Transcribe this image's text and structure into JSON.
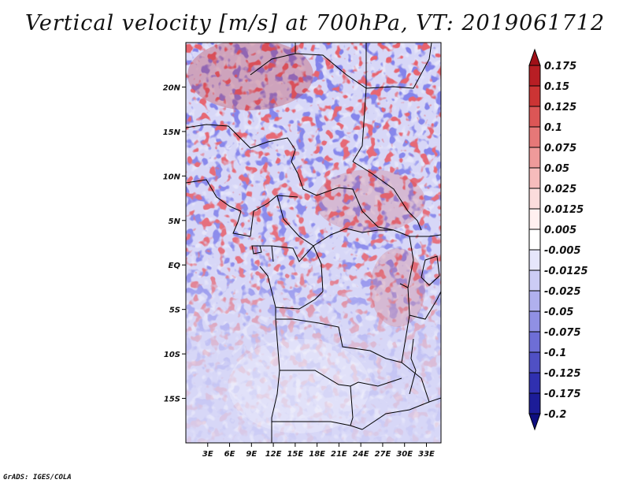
{
  "title": "Vertical velocity [m/s] at 700hPa, VT: 2019061712",
  "credit": "GrADS: IGES/COLA",
  "map": {
    "lon_range": [
      0,
      35
    ],
    "lat_range": [
      -20,
      25
    ],
    "lat_ticks": [
      {
        "lat": 20,
        "label": "20N"
      },
      {
        "lat": 15,
        "label": "15N"
      },
      {
        "lat": 10,
        "label": "10N"
      },
      {
        "lat": 5,
        "label": "5N"
      },
      {
        "lat": 0,
        "label": "EQ"
      },
      {
        "lat": -5,
        "label": "5S"
      },
      {
        "lat": -10,
        "label": "10S"
      },
      {
        "lat": -15,
        "label": "15S"
      }
    ],
    "lon_ticks": [
      {
        "lon": 3,
        "label": "3E"
      },
      {
        "lon": 6,
        "label": "6E"
      },
      {
        "lon": 9,
        "label": "9E"
      },
      {
        "lon": 12,
        "label": "12E"
      },
      {
        "lon": 15,
        "label": "15E"
      },
      {
        "lon": 18,
        "label": "18E"
      },
      {
        "lon": 21,
        "label": "21E"
      },
      {
        "lon": 24,
        "label": "24E"
      },
      {
        "lon": 27,
        "label": "27E"
      },
      {
        "lon": 30,
        "label": "30E"
      },
      {
        "lon": 33,
        "label": "33E"
      }
    ]
  },
  "colorbar": {
    "labels": [
      "0.175",
      "0.15",
      "0.125",
      "0.1",
      "0.075",
      "0.05",
      "0.025",
      "0.0125",
      "0.005",
      "-0.005",
      "-0.0125",
      "-0.025",
      "-0.05",
      "-0.075",
      "-0.1",
      "-0.125",
      "-0.175",
      "-0.2"
    ],
    "colors": [
      "#a01018",
      "#b81e24",
      "#cc3434",
      "#dc5656",
      "#e67878",
      "#ef9a9a",
      "#f6bcbc",
      "#fbdcdc",
      "#fff0f0",
      "#ffffff",
      "#e6e6fb",
      "#ccccf5",
      "#b0b0ee",
      "#9090e4",
      "#6e6ed6",
      "#5050c4",
      "#3030b0",
      "#1c1c98",
      "#0e0e80"
    ]
  }
}
